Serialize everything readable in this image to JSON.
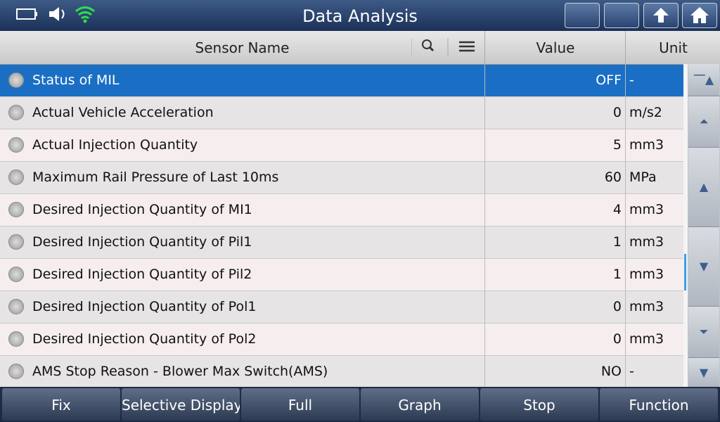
{
  "header": {
    "title": "Data Analysis"
  },
  "columns": {
    "name": "Sensor Name",
    "value": "Value",
    "unit": "Unit"
  },
  "table": {
    "rows": [
      [
        "Status of MIL",
        "OFF",
        "-"
      ],
      [
        "Actual Vehicle Acceleration",
        "0",
        "m/s2"
      ],
      [
        "Actual Injection Quantity",
        "5",
        "mm3"
      ],
      [
        "Maximum Rail Pressure of Last 10ms",
        "60",
        "MPa"
      ],
      [
        "Desired Injection Quantity of MI1",
        "4",
        "mm3"
      ],
      [
        "Desired Injection Quantity of Pil1",
        "1",
        "mm3"
      ],
      [
        "Desired Injection Quantity of Pil2",
        "1",
        "mm3"
      ],
      [
        "Desired Injection Quantity of Pol1",
        "0",
        "mm3"
      ],
      [
        "Desired Injection Quantity of Pol2",
        "0",
        "mm3"
      ],
      [
        "AMS Stop Reason - Blower Max Switch(AMS)",
        "NO",
        "-"
      ]
    ]
  },
  "toolbar": {
    "buttons": [
      "Fix",
      "Selective Display",
      "Full",
      "Graph",
      "Stop",
      "Function"
    ]
  }
}
